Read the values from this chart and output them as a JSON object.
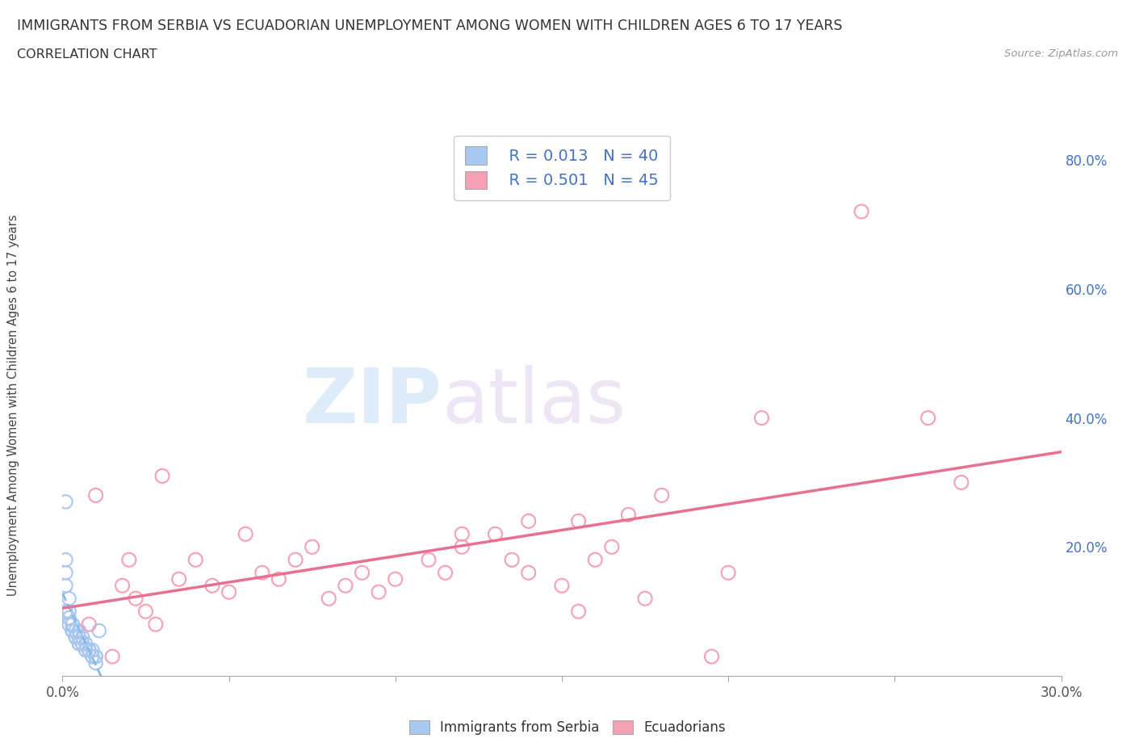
{
  "title": "IMMIGRANTS FROM SERBIA VS ECUADORIAN UNEMPLOYMENT AMONG WOMEN WITH CHILDREN AGES 6 TO 17 YEARS",
  "subtitle": "CORRELATION CHART",
  "source": "Source: ZipAtlas.com",
  "ylabel": "Unemployment Among Women with Children Ages 6 to 17 years",
  "xlim": [
    0.0,
    0.3
  ],
  "ylim": [
    0.0,
    0.85
  ],
  "xticks": [
    0.0,
    0.05,
    0.1,
    0.15,
    0.2,
    0.25,
    0.3
  ],
  "xticklabels": [
    "0.0%",
    "",
    "",
    "",
    "",
    "",
    "30.0%"
  ],
  "ytick_positions": [
    0.0,
    0.2,
    0.4,
    0.6,
    0.8
  ],
  "ytick_labels": [
    "",
    "20.0%",
    "40.0%",
    "60.0%",
    "80.0%"
  ],
  "serbia_color": "#a8c8f0",
  "ecuador_color": "#f5a0b5",
  "serbia_line_color": "#88b8e8",
  "ecuador_line_color": "#e87090",
  "legend_r_serbia": "R = 0.013",
  "legend_n_serbia": "N = 40",
  "legend_r_ecuador": "R = 0.501",
  "legend_n_ecuador": "N = 45",
  "serbia_label": "Immigrants from Serbia",
  "ecuador_label": "Ecuadorians",
  "watermark_zip": "ZIP",
  "watermark_atlas": "atlas",
  "serbia_scatter_x": [
    0.001,
    0.001,
    0.001,
    0.001,
    0.001,
    0.002,
    0.002,
    0.002,
    0.002,
    0.002,
    0.003,
    0.003,
    0.003,
    0.003,
    0.004,
    0.004,
    0.004,
    0.005,
    0.005,
    0.005,
    0.006,
    0.006,
    0.007,
    0.007,
    0.008,
    0.008,
    0.009,
    0.009,
    0.01,
    0.01,
    0.002,
    0.003,
    0.004,
    0.005,
    0.006,
    0.007,
    0.008,
    0.009,
    0.01,
    0.011
  ],
  "serbia_scatter_y": [
    0.27,
    0.18,
    0.16,
    0.14,
    0.1,
    0.1,
    0.09,
    0.09,
    0.08,
    0.08,
    0.08,
    0.07,
    0.07,
    0.07,
    0.07,
    0.06,
    0.06,
    0.06,
    0.05,
    0.05,
    0.05,
    0.05,
    0.04,
    0.04,
    0.04,
    0.04,
    0.03,
    0.03,
    0.03,
    0.02,
    0.12,
    0.08,
    0.06,
    0.07,
    0.06,
    0.05,
    0.04,
    0.04,
    0.03,
    0.07
  ],
  "ecuador_scatter_x": [
    0.008,
    0.01,
    0.015,
    0.018,
    0.02,
    0.022,
    0.025,
    0.028,
    0.03,
    0.035,
    0.04,
    0.045,
    0.05,
    0.055,
    0.06,
    0.065,
    0.07,
    0.075,
    0.08,
    0.085,
    0.09,
    0.095,
    0.1,
    0.11,
    0.115,
    0.12,
    0.13,
    0.135,
    0.14,
    0.15,
    0.155,
    0.16,
    0.165,
    0.17,
    0.175,
    0.18,
    0.2,
    0.21,
    0.24,
    0.26,
    0.27,
    0.14,
    0.12,
    0.195,
    0.155
  ],
  "ecuador_scatter_y": [
    0.08,
    0.28,
    0.03,
    0.14,
    0.18,
    0.12,
    0.1,
    0.08,
    0.31,
    0.15,
    0.18,
    0.14,
    0.13,
    0.22,
    0.16,
    0.15,
    0.18,
    0.2,
    0.12,
    0.14,
    0.16,
    0.13,
    0.15,
    0.18,
    0.16,
    0.2,
    0.22,
    0.18,
    0.16,
    0.14,
    0.24,
    0.18,
    0.2,
    0.25,
    0.12,
    0.28,
    0.16,
    0.4,
    0.72,
    0.4,
    0.3,
    0.24,
    0.22,
    0.03,
    0.1
  ]
}
